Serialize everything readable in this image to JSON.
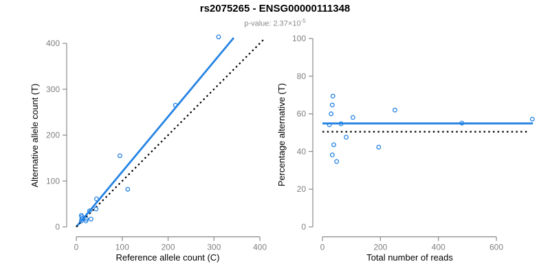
{
  "header": {
    "title": "rs2075265 - ENSG00000111348",
    "subtitle_base": "p-value: 2.37×10",
    "subtitle_exponent": "-5"
  },
  "colors": {
    "accent_blue": "#2583E3",
    "identity_black": "#000000",
    "axis_gray": "#888888",
    "tick_label_gray": "#7f7f7f",
    "subtitle_gray": "#8a8a8a"
  },
  "chart_data": [
    {
      "type": "scatter",
      "xlabel": "Reference allele count (C)",
      "ylabel": "Alternative allele count (T)",
      "xlim": [
        0,
        412
      ],
      "ylim": [
        0,
        415
      ],
      "xticks": [
        0,
        100,
        200,
        300,
        400
      ],
      "yticks": [
        0,
        100,
        200,
        300,
        400
      ],
      "grid": false,
      "points": [
        [
          11,
          25
        ],
        [
          12,
          22
        ],
        [
          12,
          18
        ],
        [
          11,
          13
        ],
        [
          21,
          13
        ],
        [
          22,
          17
        ],
        [
          32,
          17
        ],
        [
          29,
          35
        ],
        [
          43,
          39
        ],
        [
          44,
          61
        ],
        [
          95,
          155
        ],
        [
          112,
          82
        ],
        [
          216,
          265
        ],
        [
          310,
          414
        ]
      ],
      "lines": [
        {
          "name": "fit-line",
          "style": "solid",
          "color": "blue",
          "x1": 0,
          "y1": 0,
          "x2": 343,
          "y2": 412
        },
        {
          "name": "identity-line",
          "style": "dotted",
          "color": "black",
          "x1": 0,
          "y1": 0,
          "x2": 410,
          "y2": 410
        }
      ]
    },
    {
      "type": "scatter",
      "xlabel": "Total number of reads",
      "ylabel": "Percentage alternative (T)",
      "xlim": [
        0,
        730
      ],
      "ylim": [
        0,
        100
      ],
      "xticks": [
        0,
        200,
        400,
        600
      ],
      "yticks": [
        0,
        20,
        40,
        60,
        80,
        100
      ],
      "grid": false,
      "points": [
        [
          36,
          69.4
        ],
        [
          34,
          64.7
        ],
        [
          30,
          60.0
        ],
        [
          24,
          54.2
        ],
        [
          34,
          38.2
        ],
        [
          39,
          43.6
        ],
        [
          49,
          34.7
        ],
        [
          64,
          54.7
        ],
        [
          82,
          47.6
        ],
        [
          105,
          58.1
        ],
        [
          250,
          62.0
        ],
        [
          194,
          42.3
        ],
        [
          481,
          55.1
        ],
        [
          724,
          57.2
        ]
      ],
      "lines": [
        {
          "name": "mean-line",
          "style": "solid",
          "color": "blue",
          "x1": 0,
          "y1": 54.9,
          "x2": 726,
          "y2": 54.9
        },
        {
          "name": "reference-line",
          "style": "dotted",
          "color": "black",
          "x1": 0,
          "y1": 50.5,
          "x2": 709,
          "y2": 50.5
        }
      ]
    }
  ]
}
